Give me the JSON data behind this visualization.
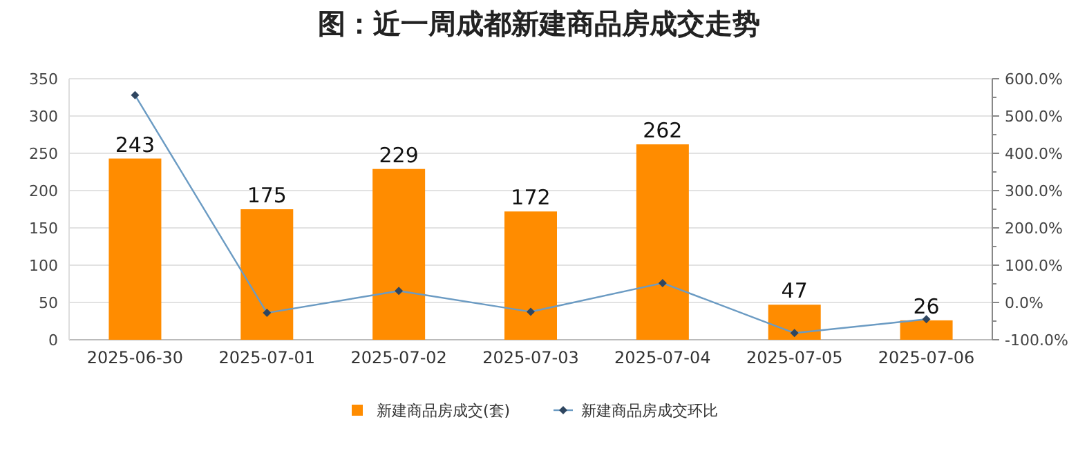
{
  "chart_data": {
    "type": "bar",
    "title": "图：近一周成都新建商品房成交走势",
    "categories": [
      "2025-06-30",
      "2025-07-01",
      "2025-07-02",
      "2025-07-03",
      "2025-07-04",
      "2025-07-05",
      "2025-07-06"
    ],
    "series": [
      {
        "name": "新建商品房成交(套)",
        "color": "#ff8c00",
        "values": [
          243,
          175,
          229,
          172,
          262,
          47,
          26
        ],
        "value_labels": [
          "243",
          "175",
          "229",
          "172",
          "262",
          "47",
          "26"
        ]
      },
      {
        "name": "新建商品房成交环比",
        "type": "line",
        "axis": "y2",
        "color": "#6b9bc3",
        "marker": "diamond",
        "values": [
          556,
          -28,
          31,
          -25,
          52,
          -82,
          -45
        ]
      }
    ],
    "ylim": [
      0,
      350
    ],
    "yticks": [
      0,
      50,
      100,
      150,
      200,
      250,
      300,
      350
    ],
    "y2lim": [
      -100,
      600
    ],
    "y2ticks": [
      {
        "value": -100,
        "label": "-100.0%"
      },
      {
        "value": -50,
        "label": null
      },
      {
        "value": 0,
        "label": "0.0%"
      },
      {
        "value": 50,
        "label": null
      },
      {
        "value": 100,
        "label": "100.0%"
      },
      {
        "value": 150,
        "label": null
      },
      {
        "value": 200,
        "label": "200.0%"
      },
      {
        "value": 250,
        "label": null
      },
      {
        "value": 300,
        "label": "300.0%"
      },
      {
        "value": 350,
        "label": null
      },
      {
        "value": 400,
        "label": "400.0%"
      },
      {
        "value": 450,
        "label": null
      },
      {
        "value": 500,
        "label": "500.0%"
      },
      {
        "value": 550,
        "label": null
      },
      {
        "value": 600,
        "label": "600.0%"
      }
    ],
    "grid": "y",
    "legend": "bottom"
  }
}
